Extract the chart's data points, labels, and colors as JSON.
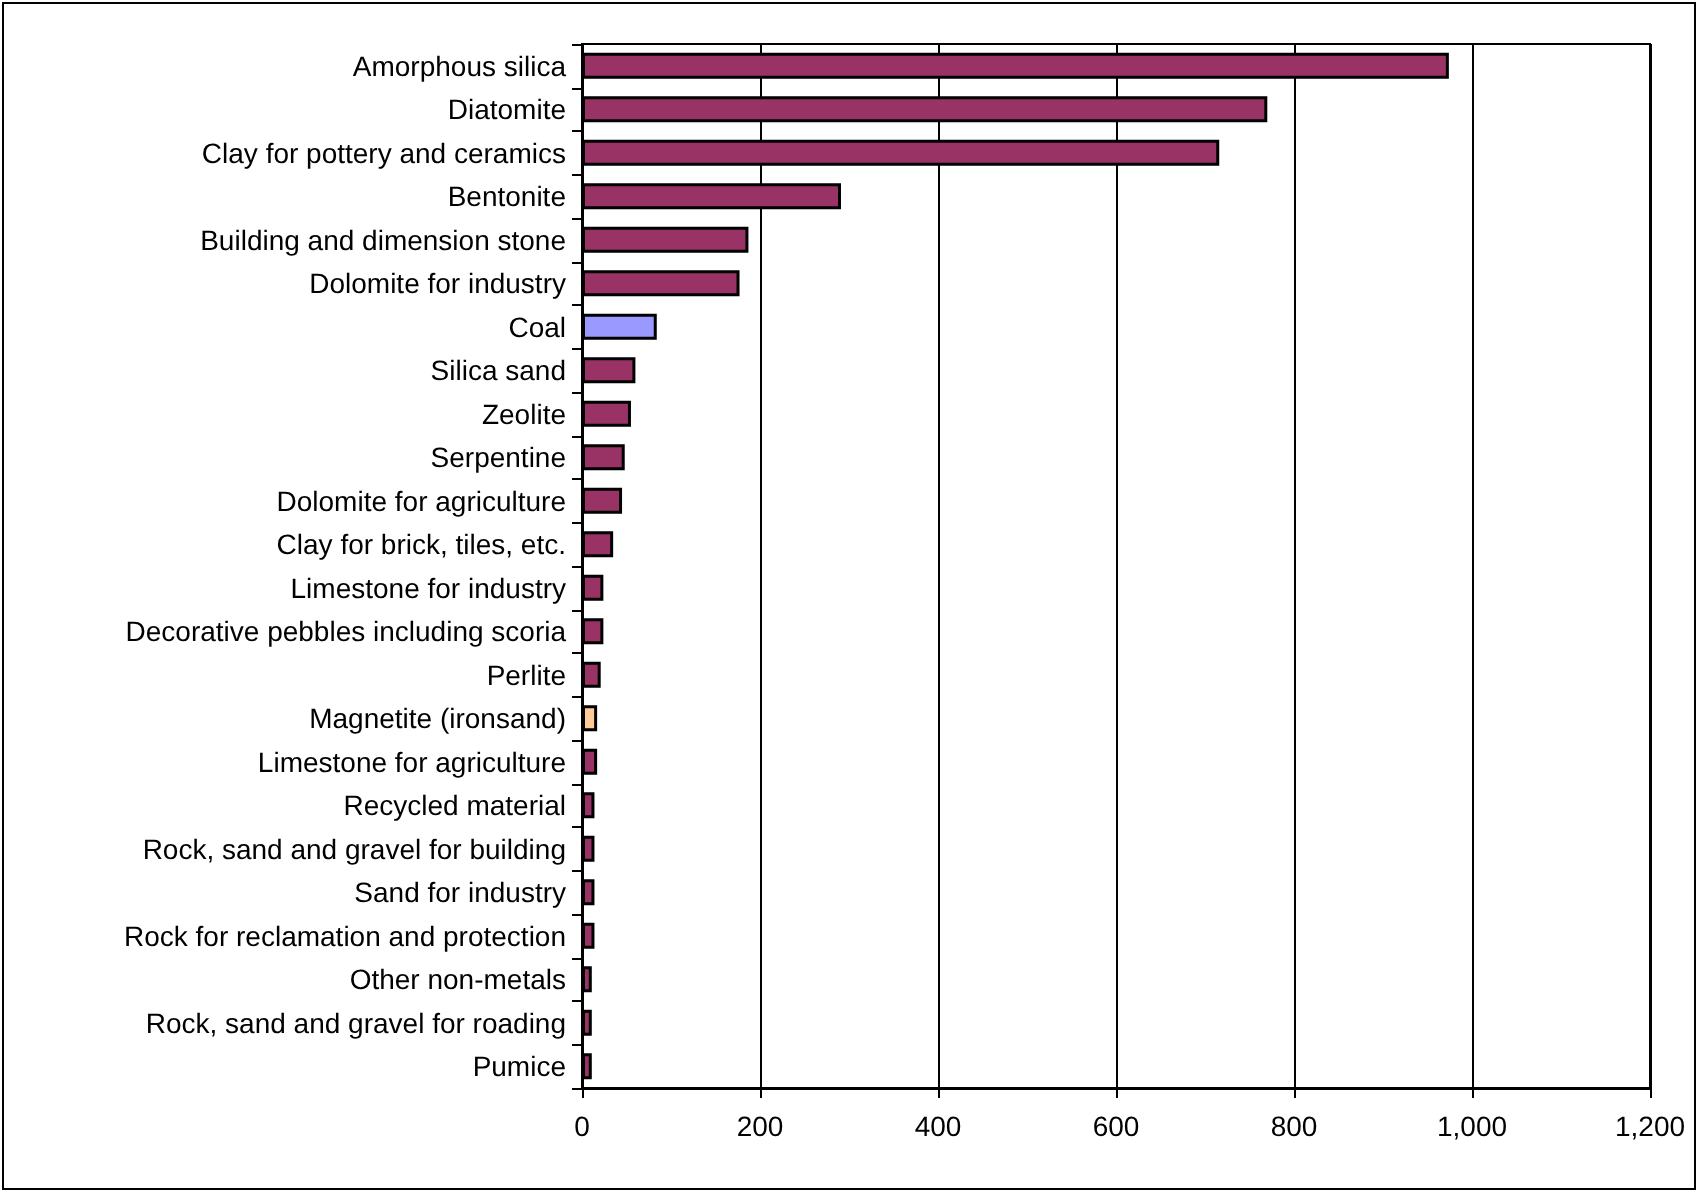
{
  "chart_data": {
    "type": "bar",
    "orientation": "horizontal",
    "categories": [
      "Amorphous silica",
      "Diatomite",
      "Clay for pottery and ceramics",
      "Bentonite",
      "Building and dimension stone",
      "Dolomite for industry",
      "Coal",
      "Silica sand",
      "Zeolite",
      "Serpentine",
      "Dolomite for agriculture",
      "Clay for brick, tiles, etc.",
      "Limestone for industry",
      "Decorative pebbles including scoria",
      "Perlite",
      "Magnetite (ironsand)",
      "Limestone for agriculture",
      "Recycled material",
      "Rock, sand and gravel for building",
      "Sand for industry",
      "Rock for reclamation and protection",
      "Other non-metals",
      "Rock, sand and gravel for roading",
      "Pumice"
    ],
    "values": [
      974,
      770,
      716,
      291,
      187,
      177,
      84,
      60,
      55,
      48,
      45,
      35,
      24,
      24,
      21,
      17,
      17,
      14,
      14,
      14,
      14,
      11,
      11,
      11
    ],
    "colors": [
      "#993366",
      "#993366",
      "#993366",
      "#993366",
      "#993366",
      "#993366",
      "#9999ff",
      "#993366",
      "#993366",
      "#993366",
      "#993366",
      "#993366",
      "#993366",
      "#993366",
      "#993366",
      "#ffcc99",
      "#993366",
      "#993366",
      "#993366",
      "#993366",
      "#993366",
      "#993366",
      "#993366",
      "#993366"
    ],
    "xlim": [
      0,
      1200
    ],
    "xticks": [
      {
        "value": 0,
        "label": "0"
      },
      {
        "value": 200,
        "label": "200"
      },
      {
        "value": 400,
        "label": "400"
      },
      {
        "value": 600,
        "label": "600"
      },
      {
        "value": 800,
        "label": "800"
      },
      {
        "value": 1000,
        "label": "1,000"
      },
      {
        "value": 1200,
        "label": "1,200"
      }
    ],
    "grid": "x"
  }
}
